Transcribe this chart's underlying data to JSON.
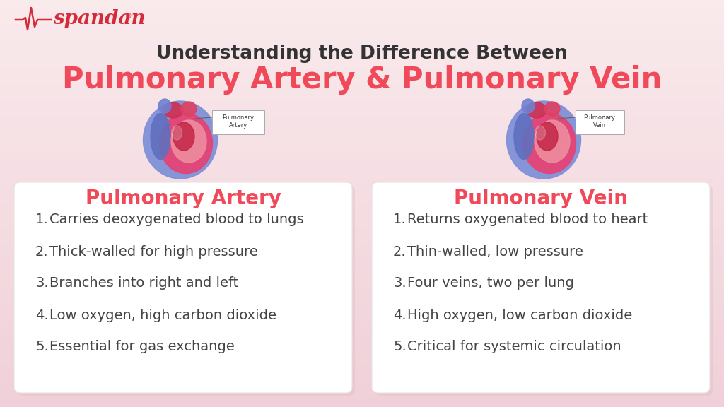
{
  "title_line1": "Understanding the Difference Between",
  "title_line2": "Pulmonary Artery & Pulmonary Vein",
  "title_line1_color": "#333333",
  "title_line2_color": "#F0495A",
  "bg_top": "#F9EAEC",
  "bg_bottom": "#F0D0D8",
  "card_bg": "#FFFFFF",
  "card_edge": "#E8E0E4",
  "left_title": "Pulmonary Artery",
  "right_title": "Pulmonary Vein",
  "card_title_color": "#F0495A",
  "left_items": [
    "Carries deoxygenated blood to lungs",
    "Thick-walled for high pressure",
    "Branches into right and left",
    "Low oxygen, high carbon dioxide",
    "Essential for gas exchange"
  ],
  "right_items": [
    "Returns oxygenated blood to heart",
    "Thin-walled, low pressure",
    "Four veins, two per lung",
    "High oxygen, low carbon dioxide",
    "Critical for systemic circulation"
  ],
  "item_color": "#444444",
  "logo_color": "#D42B3A",
  "logo_text": "spandan",
  "title1_fontsize": 19,
  "title2_fontsize": 30,
  "card_title_fontsize": 20,
  "item_fontsize": 14
}
